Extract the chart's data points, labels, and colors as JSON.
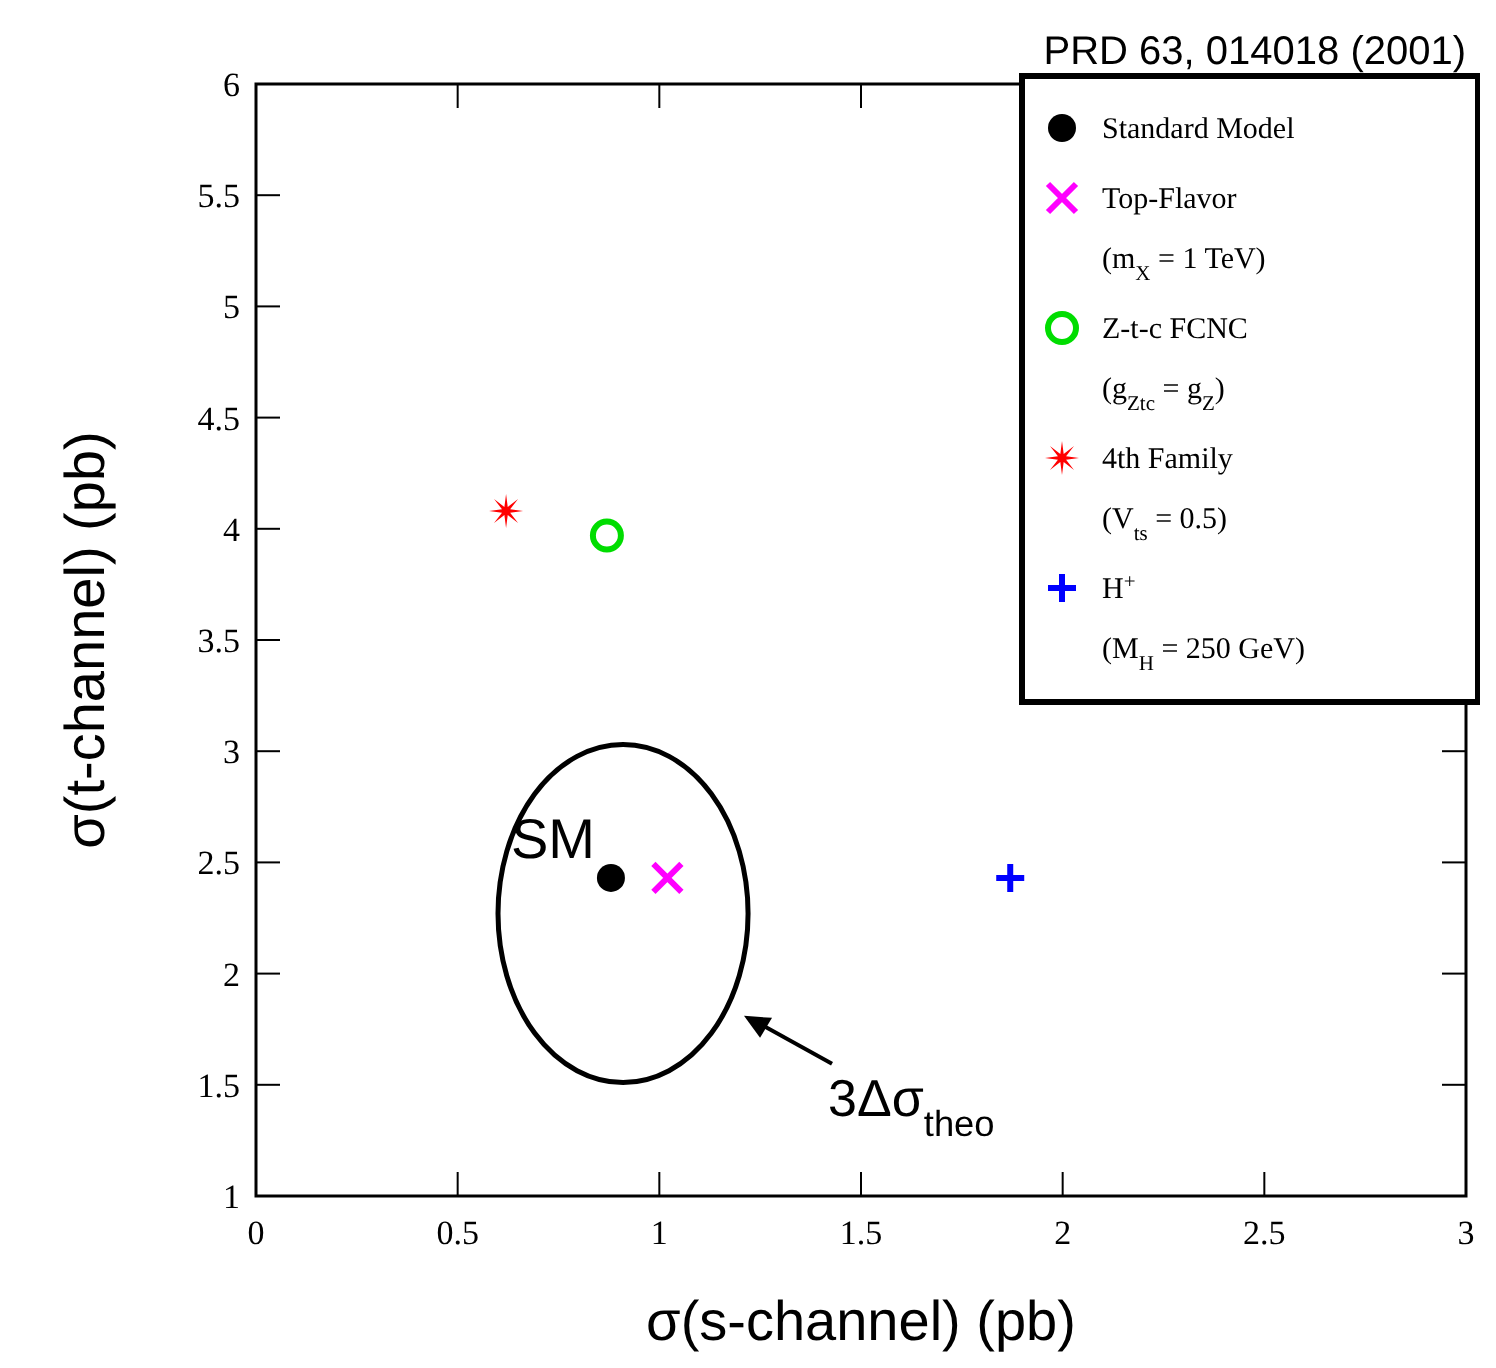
{
  "chart_data": {
    "type": "scatter",
    "xlabel": "σ(s-channel) (pb)",
    "ylabel": "σ(t-channel) (pb)",
    "xlim": [
      0,
      3
    ],
    "xticks": [
      0,
      0.5,
      1,
      1.5,
      2,
      2.5,
      3
    ],
    "ylim": [
      1,
      6
    ],
    "yticks": [
      1,
      1.5,
      2,
      2.5,
      3,
      3.5,
      4,
      4.5,
      5,
      5.5,
      6
    ],
    "grid": false,
    "legend": "top right",
    "series": [
      {
        "name": "Standard Model",
        "color": "#000000",
        "marker": "circle",
        "x": [
          0.88
        ],
        "values": [
          2.43
        ]
      },
      {
        "name": "Top-Flavor\n(m$_{X}$ = 1 TeV)",
        "color": "#ff00ff",
        "marker": "x",
        "x": [
          1.02
        ],
        "values": [
          2.43
        ]
      },
      {
        "name": "Z-t-c FCNC\n(g$_{Ztc}$ = g$_{Z}$)",
        "color": "#00dd00",
        "marker": "circle",
        "x": [
          0.87
        ],
        "values": [
          3.97
        ]
      },
      {
        "name": "4th Family\n(V$_{ts}$ = 0.5)",
        "color": "#ff0000",
        "marker": "star",
        "x": [
          0.62
        ],
        "values": [
          4.08
        ]
      },
      {
        "name": "H$^{+}$\n(M$_{H}$ = 250 GeV)",
        "color": "#0000ff",
        "marker": "plus",
        "x": [
          1.87
        ],
        "values": [
          2.43
        ]
      }
    ],
    "annotations": [
      {
        "text": "SM",
        "x": 0.88,
        "y": 2.43
      },
      "3Δσ$_{theo}$",
      "PRD 63, 014018 (2001)"
    ]
  }
}
